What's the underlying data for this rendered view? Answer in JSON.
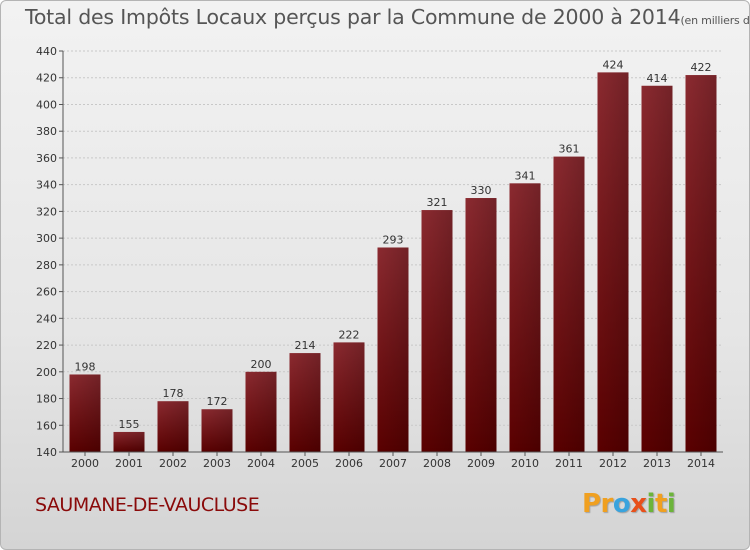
{
  "header": {
    "title": "Total des Impôts Locaux perçus par la Commune de 2000 à 2014",
    "subtitle": "(en milliers d'€)"
  },
  "footer": {
    "commune": "SAUMANE-DE-VAUCLUSE",
    "logo": {
      "p1": "Pr",
      "p2": "o",
      "p3": "x",
      "p4": "i",
      "p5": "t",
      "p6": "i"
    }
  },
  "colors": {
    "bar_top": "#8b2a30",
    "bar_bottom": "#5a0000",
    "title": "#555555",
    "commune": "#8a0a0a"
  },
  "chart_data": {
    "type": "bar",
    "title": "Total des Impôts Locaux perçus par la Commune de 2000 à 2014",
    "subtitle": "(en milliers d'€)",
    "xlabel": "",
    "ylabel": "",
    "categories": [
      "2000",
      "2001",
      "2002",
      "2003",
      "2004",
      "2005",
      "2006",
      "2007",
      "2008",
      "2009",
      "2010",
      "2011",
      "2012",
      "2013",
      "2014"
    ],
    "values": [
      198,
      155,
      178,
      172,
      200,
      214,
      222,
      293,
      321,
      330,
      341,
      361,
      424,
      414,
      422
    ],
    "ylim": [
      140,
      440
    ],
    "yticks": [
      140,
      160,
      180,
      200,
      220,
      240,
      260,
      280,
      300,
      320,
      340,
      360,
      380,
      400,
      420,
      440
    ],
    "grid": true
  }
}
